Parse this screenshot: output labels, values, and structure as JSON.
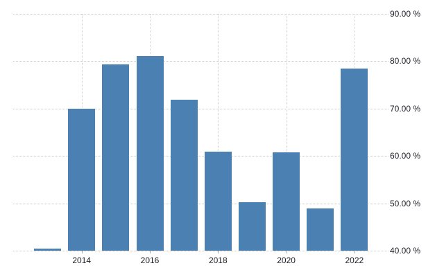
{
  "chart_data": {
    "type": "bar",
    "categories": [
      "2013",
      "2014",
      "2015",
      "2016",
      "2017",
      "2018",
      "2019",
      "2020",
      "2021",
      "2022"
    ],
    "values": [
      40.4,
      70.0,
      79.4,
      81.1,
      71.8,
      60.9,
      50.2,
      60.8,
      48.9,
      78.5
    ],
    "x_tick_labels": [
      "2014",
      "2016",
      "2018",
      "2020",
      "2022"
    ],
    "y_tick_labels": [
      "90.00 %",
      "80.00 %",
      "70.00 %",
      "60.00 %",
      "50.00 %",
      "40.00 %"
    ],
    "ylim": [
      40,
      90
    ],
    "grid": "dotted",
    "legend_position": "none",
    "bar_color": "#4a80b2",
    "gridline_color": "#c9c9c9",
    "axis_text_color": "#1c1c24",
    "background_color": "#ffffff",
    "unit_suffix": " %"
  }
}
